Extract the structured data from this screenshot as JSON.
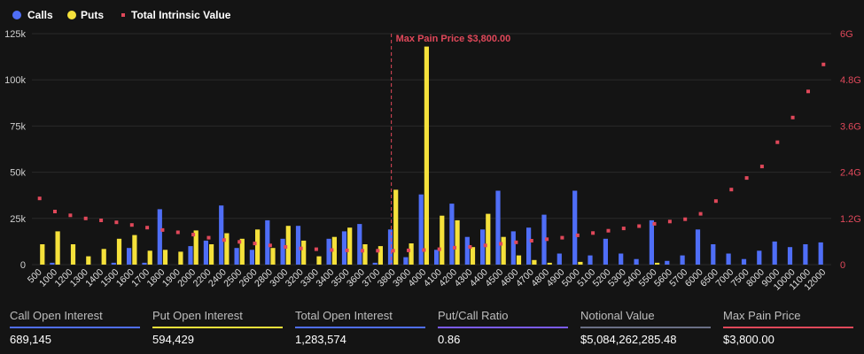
{
  "chart_data": {
    "type": "bar",
    "legend": [
      "Calls",
      "Puts",
      "Total Intrinsic Value"
    ],
    "colors": {
      "calls": "#4f6ef7",
      "puts": "#f5e13b",
      "intrinsic": "#e0485a",
      "annotation": "#e0485a"
    },
    "legend_position": "top-left",
    "y_left": {
      "ticks": [
        "0",
        "25k",
        "50k",
        "75k",
        "100k",
        "125k"
      ],
      "range": [
        0,
        125000
      ]
    },
    "y_right": {
      "ticks": [
        "0",
        "1.2G",
        "2.4G",
        "3.6G",
        "4.8G",
        "6G"
      ],
      "range": [
        0,
        6000000000
      ]
    },
    "categories": [
      "500",
      "1000",
      "1200",
      "1300",
      "1400",
      "1500",
      "1600",
      "1700",
      "1800",
      "1900",
      "2000",
      "2200",
      "2400",
      "2500",
      "2600",
      "2800",
      "3000",
      "3200",
      "3300",
      "3400",
      "3500",
      "3600",
      "3700",
      "3800",
      "3900",
      "4000",
      "4100",
      "4200",
      "4300",
      "4400",
      "4500",
      "4600",
      "4700",
      "4800",
      "4900",
      "5000",
      "5100",
      "5200",
      "5300",
      "5400",
      "5500",
      "5600",
      "5700",
      "6000",
      "6500",
      "7000",
      "7500",
      "8000",
      "9000",
      "10000",
      "11000",
      "12000"
    ],
    "series": [
      {
        "name": "Calls",
        "values": [
          0,
          1000,
          0,
          0,
          0,
          1000,
          9000,
          1000,
          30000,
          0,
          10000,
          13000,
          32000,
          9000,
          8000,
          24000,
          14000,
          21000,
          0,
          14000,
          18000,
          22000,
          1000,
          19000,
          4000,
          38000,
          8000,
          33000,
          15000,
          19000,
          40000,
          18000,
          20000,
          27000,
          6000,
          40000,
          5000,
          14000,
          6000,
          3000,
          24000,
          2000,
          5000,
          19000,
          11000,
          6000,
          3000,
          7500,
          12500,
          9500,
          11000,
          12000
        ]
      },
      {
        "name": "Puts",
        "values": [
          11000,
          18000,
          11000,
          4500,
          8500,
          14000,
          16000,
          7500,
          8000,
          7000,
          18500,
          11000,
          17000,
          14000,
          19000,
          9000,
          21000,
          13000,
          4500,
          15000,
          20000,
          11000,
          10000,
          40500,
          11500,
          118000,
          26500,
          24000,
          9500,
          27500,
          15000,
          5000,
          2500,
          1000,
          0,
          1500,
          0,
          0,
          0,
          0,
          1000,
          0,
          0,
          0,
          0,
          0,
          0,
          0,
          0,
          0,
          0,
          0
        ]
      },
      {
        "name": "Total Intrinsic Value",
        "values": [
          1.72,
          1.38,
          1.28,
          1.2,
          1.15,
          1.1,
          1.03,
          0.96,
          0.9,
          0.84,
          0.78,
          0.7,
          0.64,
          0.59,
          0.55,
          0.5,
          0.46,
          0.42,
          0.4,
          0.38,
          0.37,
          0.36,
          0.36,
          0.36,
          0.37,
          0.38,
          0.4,
          0.44,
          0.46,
          0.5,
          0.54,
          0.58,
          0.62,
          0.66,
          0.7,
          0.76,
          0.82,
          0.88,
          0.94,
          1.0,
          1.06,
          1.12,
          1.18,
          1.32,
          1.65,
          1.95,
          2.25,
          2.55,
          3.18,
          3.82,
          4.5,
          5.2
        ]
      }
    ],
    "annotation": {
      "label": "Max Pain Price $3,800.00",
      "category": "3800"
    }
  },
  "stats": [
    {
      "label": "Call Open Interest",
      "value": "689,145",
      "color": "#4f6ef7"
    },
    {
      "label": "Put Open Interest",
      "value": "594,429",
      "color": "#f5e13b"
    },
    {
      "label": "Total Open Interest",
      "value": "1,283,574",
      "color": "#4f6ef7"
    },
    {
      "label": "Put/Call Ratio",
      "value": "0.86",
      "color": "#7b5cf5"
    },
    {
      "label": "Notional Value",
      "value": "$5,084,262,285.48",
      "color": "#6a6f85"
    },
    {
      "label": "Max Pain Price",
      "value": "$3,800.00",
      "color": "#e0485a"
    }
  ]
}
